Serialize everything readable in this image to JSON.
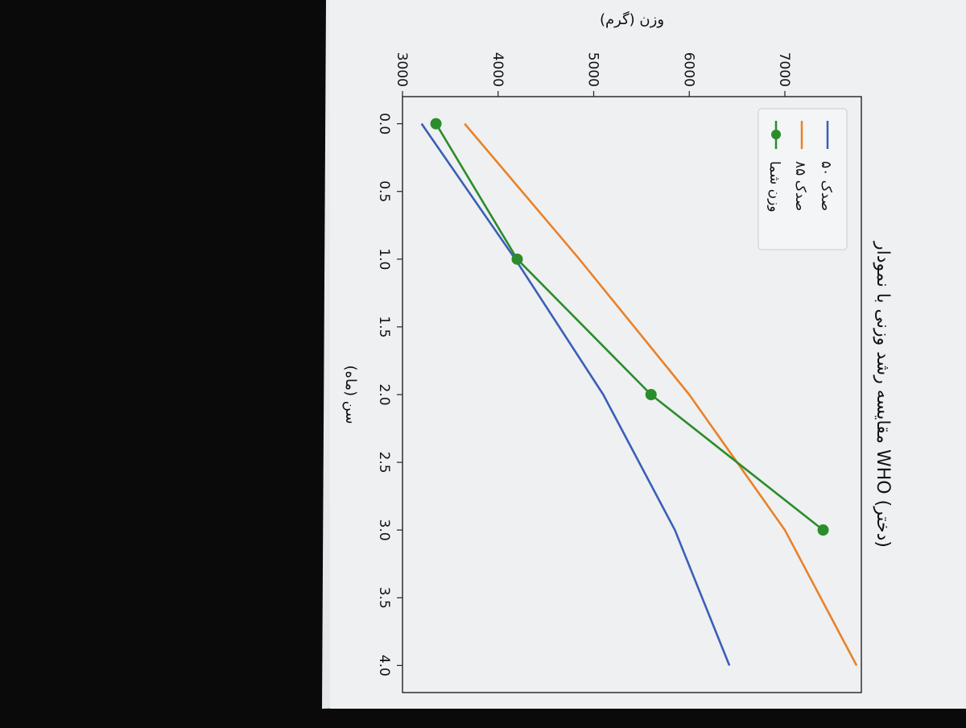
{
  "chart_data": {
    "type": "line",
    "title": "مقایسه رشد وزنی با نمودار WHO (دختر)",
    "xlabel": "سن (ماه)",
    "ylabel": "وزن (گرم)",
    "xlim": [
      -0.2,
      4.2
    ],
    "ylim": [
      3000,
      7800
    ],
    "xticks": [
      "0.0",
      "0.5",
      "1.0",
      "1.5",
      "2.0",
      "2.5",
      "3.0",
      "3.5",
      "4.0"
    ],
    "yticks": [
      "3000",
      "4000",
      "5000",
      "6000",
      "7000"
    ],
    "legend_position": "upper-left",
    "grid": false,
    "series": [
      {
        "name": "صدک ۵۰",
        "color": "#3a5fb8",
        "marker": false,
        "points": [
          [
            0,
            3200
          ],
          [
            1,
            4180
          ],
          [
            2,
            5100
          ],
          [
            3,
            5850
          ],
          [
            4,
            6420
          ]
        ]
      },
      {
        "name": "صدک ۸۵",
        "color": "#e8822a",
        "marker": false,
        "points": [
          [
            0,
            3650
          ],
          [
            1,
            4850
          ],
          [
            2,
            6000
          ],
          [
            3,
            7000
          ],
          [
            4,
            7750
          ]
        ]
      },
      {
        "name": "وزن شما",
        "color": "#2b8c2b",
        "marker": true,
        "points": [
          [
            0,
            3350
          ],
          [
            1,
            4200
          ],
          [
            2,
            5600
          ],
          [
            3,
            7400
          ]
        ]
      }
    ]
  }
}
